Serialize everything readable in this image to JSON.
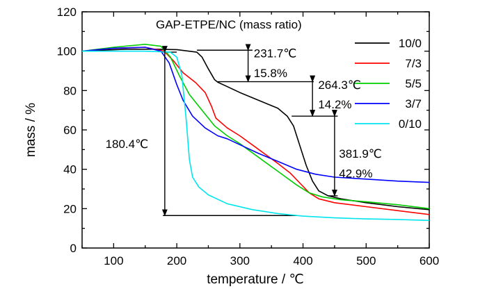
{
  "chart_data": {
    "type": "line",
    "title": "GAP-ETPE/NC (mass ratio)",
    "xlabel": "temperature / ℃",
    "ylabel": "mass / %",
    "xlim": [
      50,
      600
    ],
    "ylim": [
      0,
      120
    ],
    "x_ticks": [
      100,
      200,
      300,
      400,
      500,
      600
    ],
    "y_ticks": [
      0,
      20,
      40,
      60,
      80,
      100,
      120
    ],
    "grid": false,
    "legend_position": "top-right",
    "series": [
      {
        "name": "10/0",
        "color": "#000000",
        "points": [
          [
            50,
            100
          ],
          [
            80,
            100.5
          ],
          [
            120,
            101
          ],
          [
            160,
            101
          ],
          [
            200,
            100.8
          ],
          [
            231.7,
            99.5
          ],
          [
            240,
            97
          ],
          [
            250,
            91
          ],
          [
            260,
            85.5
          ],
          [
            265,
            84.2
          ],
          [
            280,
            82
          ],
          [
            300,
            79
          ],
          [
            330,
            75
          ],
          [
            360,
            71
          ],
          [
            375,
            67
          ],
          [
            385,
            62
          ],
          [
            395,
            52
          ],
          [
            405,
            42
          ],
          [
            415,
            34
          ],
          [
            425,
            29
          ],
          [
            440,
            26.5
          ],
          [
            460,
            25
          ],
          [
            500,
            23
          ],
          [
            550,
            21
          ],
          [
            600,
            19.5
          ]
        ]
      },
      {
        "name": "7/3",
        "color": "#ff0000",
        "points": [
          [
            50,
            100
          ],
          [
            100,
            101.5
          ],
          [
            150,
            102
          ],
          [
            180,
            100
          ],
          [
            195,
            95
          ],
          [
            210,
            89
          ],
          [
            230,
            84
          ],
          [
            245,
            79
          ],
          [
            255,
            72
          ],
          [
            262,
            66
          ],
          [
            280,
            61
          ],
          [
            300,
            57
          ],
          [
            330,
            50
          ],
          [
            360,
            43
          ],
          [
            380,
            38
          ],
          [
            395,
            33
          ],
          [
            410,
            28
          ],
          [
            425,
            25
          ],
          [
            450,
            23
          ],
          [
            500,
            21
          ],
          [
            550,
            19
          ],
          [
            600,
            17
          ]
        ]
      },
      {
        "name": "5/5",
        "color": "#00cc00",
        "points": [
          [
            50,
            100
          ],
          [
            100,
            102
          ],
          [
            150,
            103.5
          ],
          [
            175,
            102.5
          ],
          [
            190,
            97
          ],
          [
            205,
            87
          ],
          [
            220,
            78
          ],
          [
            240,
            70
          ],
          [
            260,
            62
          ],
          [
            280,
            57
          ],
          [
            300,
            53
          ],
          [
            330,
            46
          ],
          [
            360,
            39
          ],
          [
            390,
            32
          ],
          [
            410,
            28
          ],
          [
            430,
            26
          ],
          [
            460,
            24.5
          ],
          [
            500,
            23.5
          ],
          [
            550,
            22
          ],
          [
            600,
            20
          ]
        ]
      },
      {
        "name": "3/7",
        "color": "#0000ff",
        "points": [
          [
            50,
            100
          ],
          [
            100,
            101.5
          ],
          [
            150,
            102
          ],
          [
            175,
            100
          ],
          [
            188,
            94
          ],
          [
            200,
            83
          ],
          [
            210,
            75
          ],
          [
            225,
            67
          ],
          [
            245,
            61
          ],
          [
            265,
            57
          ],
          [
            280,
            55.5
          ],
          [
            300,
            52.5
          ],
          [
            330,
            48
          ],
          [
            360,
            44
          ],
          [
            390,
            40
          ],
          [
            420,
            37.5
          ],
          [
            450,
            36
          ],
          [
            500,
            35
          ],
          [
            550,
            34
          ],
          [
            600,
            33.3
          ]
        ]
      },
      {
        "name": "0/10",
        "color": "#00e5ee",
        "points": [
          [
            50,
            100
          ],
          [
            100,
            100
          ],
          [
            150,
            100
          ],
          [
            190,
            99.5
          ],
          [
            200,
            97
          ],
          [
            208,
            88
          ],
          [
            215,
            65
          ],
          [
            220,
            45
          ],
          [
            225,
            36
          ],
          [
            235,
            31
          ],
          [
            250,
            27
          ],
          [
            280,
            22.5
          ],
          [
            320,
            19.5
          ],
          [
            360,
            17.5
          ],
          [
            400,
            16.2
          ],
          [
            450,
            15.3
          ],
          [
            500,
            14.8
          ],
          [
            550,
            14.5
          ],
          [
            600,
            14
          ]
        ]
      }
    ],
    "annotations": [
      {
        "text": "231.7℃",
        "x": 322,
        "y": 99
      },
      {
        "text": "15.8%",
        "x": 322,
        "y": 89
      },
      {
        "text": "264.3℃",
        "x": 424,
        "y": 83
      },
      {
        "text": "14.2%",
        "x": 424,
        "y": 73
      },
      {
        "text": "381.9℃",
        "x": 457,
        "y": 48
      },
      {
        "text": "42.9%",
        "x": 457,
        "y": 38
      },
      {
        "text": "180.4℃",
        "x": 87,
        "y": 53
      }
    ],
    "reference_lines": [
      {
        "from": [
          232,
          100.5
        ],
        "to": [
          320,
          100.5
        ]
      },
      {
        "from": [
          265,
          84.5
        ],
        "to": [
          417,
          84.5
        ]
      },
      {
        "from": [
          382,
          67
        ],
        "to": [
          455,
          67
        ]
      },
      {
        "from": [
          440,
          26.5
        ],
        "to": [
          455,
          26.5
        ]
      },
      {
        "from": [
          178,
          99.5
        ],
        "to": [
          200,
          99.5
        ]
      },
      {
        "from": [
          178,
          16.5
        ],
        "to": [
          392,
          16.5
        ]
      }
    ],
    "arrows": [
      {
        "x": 313,
        "from": 100.5,
        "to": 84.5
      },
      {
        "x": 415,
        "from": 84.5,
        "to": 67
      },
      {
        "x": 450,
        "from": 67,
        "to": 26.5
      },
      {
        "x": 181,
        "from": 99.5,
        "to": 16.5
      }
    ]
  }
}
